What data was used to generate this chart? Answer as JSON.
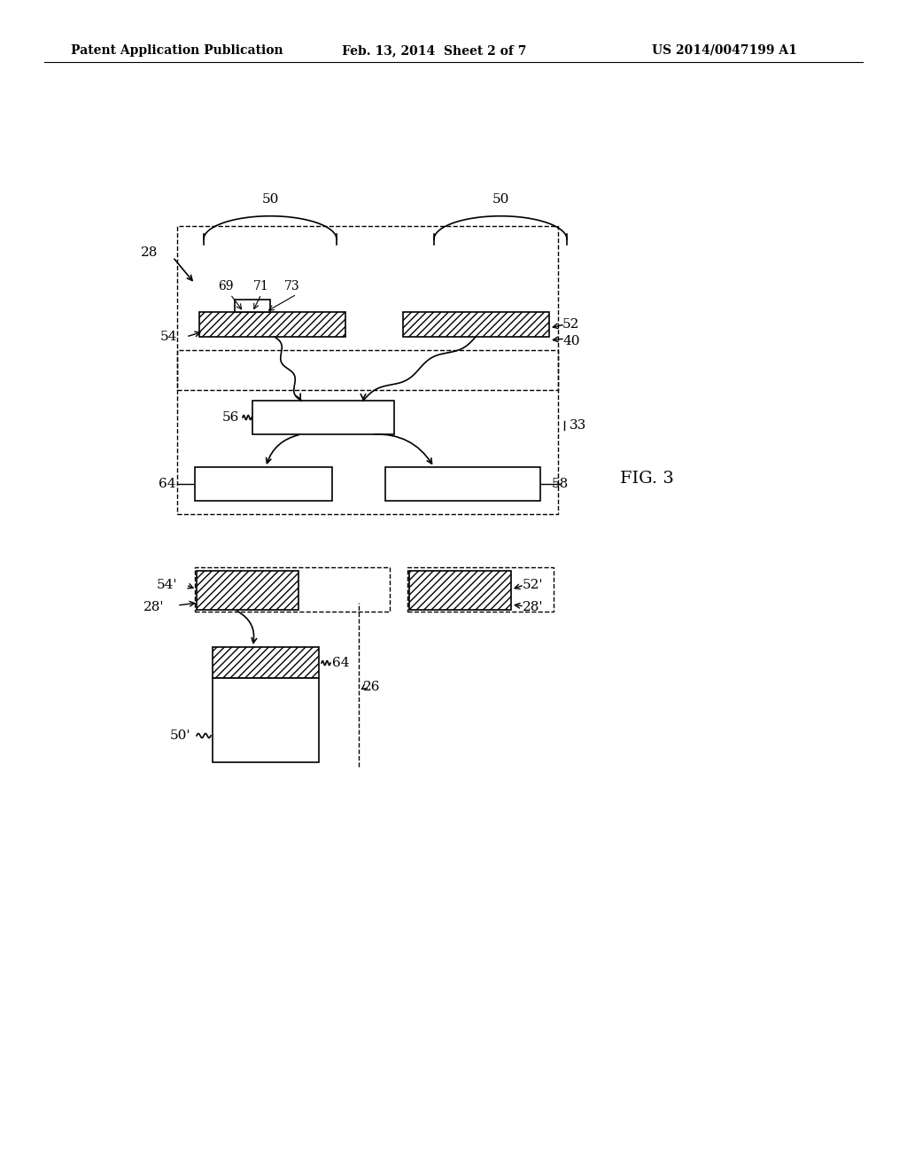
{
  "header_left": "Patent Application Publication",
  "header_mid": "Feb. 13, 2014  Sheet 2 of 7",
  "header_right": "US 2014/0047199 A1",
  "fig_label": "FIG. 3",
  "background": "#ffffff"
}
